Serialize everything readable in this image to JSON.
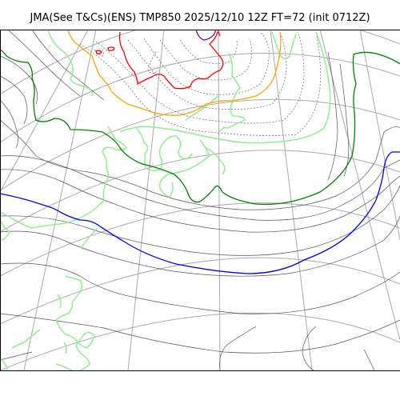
{
  "header": {
    "title": "JMA(See T&Cs)(ENS) TMP850 2025/12/10 12Z FT=72 (init 0712Z)"
  },
  "map": {
    "variable": "TMP850",
    "colors": {
      "background": "#ffffff",
      "graticule": "#aaaaaa",
      "coastline": "#90ee90",
      "contour": "#555555",
      "contour_dotted": "#666666",
      "contour_green": "#008000",
      "contour_blue": "#0000ff",
      "contour_orange": "#ffa500",
      "contour_red": "#ff0000",
      "contour_purple": "#800080",
      "frame": "#000000"
    }
  }
}
